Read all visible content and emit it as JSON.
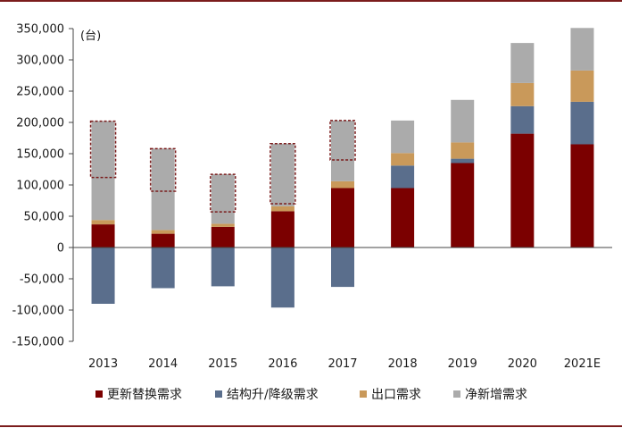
{
  "chart_data": {
    "type": "bar",
    "stacked": true,
    "unit_label": "(台)",
    "categories": [
      "2013",
      "2014",
      "2015",
      "2016",
      "2017",
      "2018",
      "2019",
      "2020",
      "2021E"
    ],
    "series": [
      {
        "name": "更新替换需求",
        "color": "#7b0000",
        "values": [
          37000,
          22000,
          33000,
          58000,
          95000,
          95000,
          135000,
          182000,
          165000
        ]
      },
      {
        "name": "结构升/降级需求",
        "color": "#5a6e8c",
        "values": [
          -90000,
          -65000,
          -62000,
          -96000,
          -63000,
          36000,
          7000,
          44000,
          68000
        ]
      },
      {
        "name": "出口需求",
        "color": "#c9995a",
        "values": [
          7000,
          6000,
          5000,
          8000,
          11000,
          20000,
          26000,
          37000,
          50000
        ]
      },
      {
        "name": "净新增需求",
        "color": "#ababab",
        "values": [
          158000,
          130000,
          79000,
          100000,
          97000,
          52000,
          68000,
          64000,
          68000
        ]
      }
    ],
    "dashed_box_ranges": [
      [
        112000,
        202000
      ],
      [
        90000,
        158000
      ],
      [
        57000,
        117000
      ],
      [
        70000,
        166000
      ],
      [
        140000,
        203000
      ],
      null,
      null,
      null,
      null
    ],
    "y_ticks": [
      "-150,000",
      "-100,000",
      "-50,000",
      "0",
      "50,000",
      "100,000",
      "150,000",
      "200,000",
      "250,000",
      "300,000",
      "350,000"
    ],
    "ylim": [
      -150000,
      350000
    ],
    "grid": false,
    "legend_position": "bottom",
    "accent_line_color": "#7b1c1c"
  }
}
